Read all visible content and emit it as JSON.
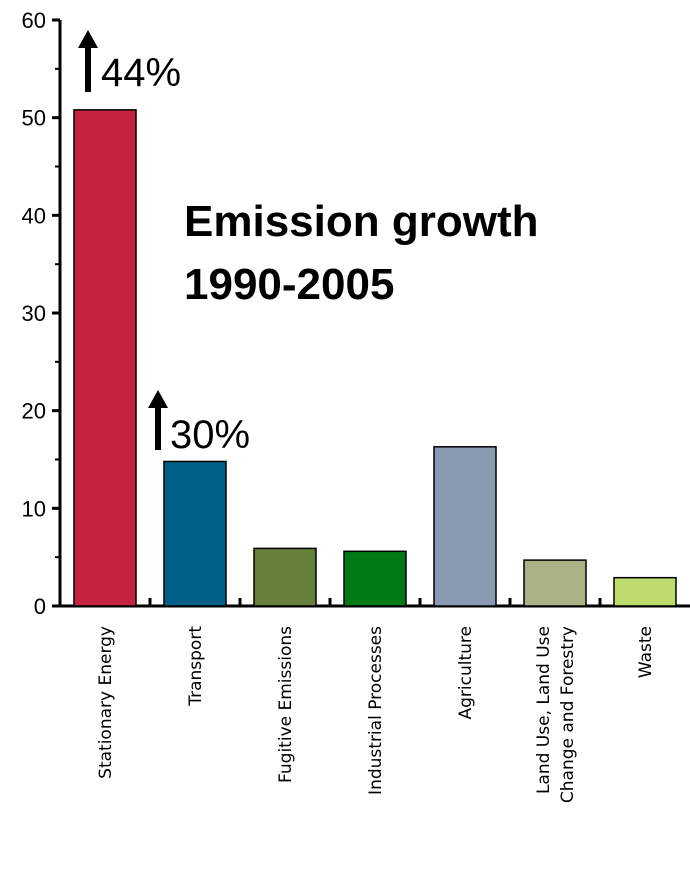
{
  "chart_data": {
    "type": "bar",
    "title_lines": [
      "Emission growth",
      "1990-2005"
    ],
    "xlabel": "",
    "ylabel": "",
    "ylim": [
      0,
      60
    ],
    "yticks": [
      0,
      10,
      20,
      30,
      40,
      50,
      60
    ],
    "grid": false,
    "legend": "none",
    "categories": [
      [
        "Stationary Energy"
      ],
      [
        "Transport"
      ],
      [
        "Fugitive Emissions"
      ],
      [
        "Industrial Processes"
      ],
      [
        "Agriculture"
      ],
      [
        "Land Use, Land Use",
        "Change and Forestry"
      ],
      [
        "Waste"
      ]
    ],
    "values": [
      50.8,
      14.8,
      5.9,
      5.6,
      16.3,
      4.7,
      2.9
    ],
    "colors": [
      "#c4243f",
      "#005f86",
      "#667f3a",
      "#007a17",
      "#8a9ab3",
      "#a9b386",
      "#bedb6d"
    ],
    "annotations": [
      {
        "category_index": 0,
        "text": "44%"
      },
      {
        "category_index": 1,
        "text": "30%"
      }
    ]
  }
}
